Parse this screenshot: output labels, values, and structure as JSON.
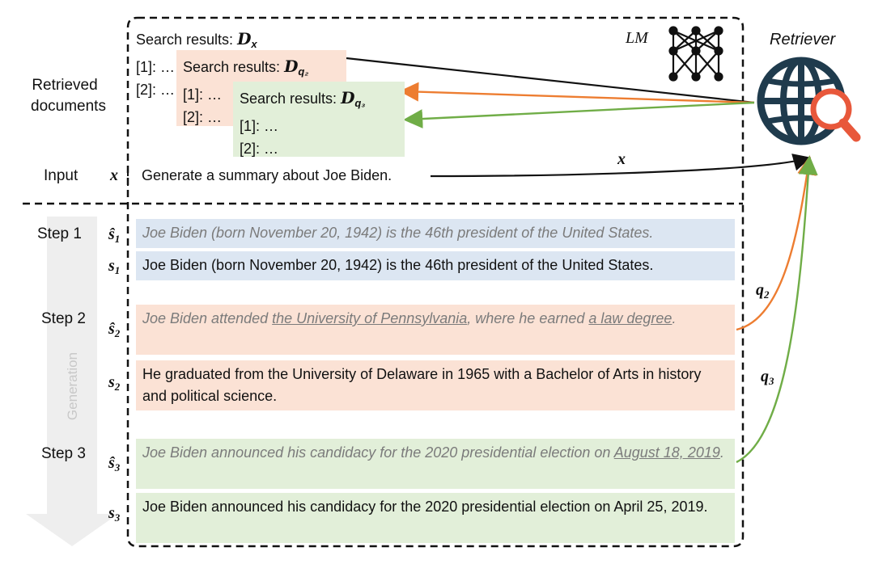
{
  "header": {
    "lm_label": "LM",
    "retriever_label": "Retriever"
  },
  "left_labels": {
    "retrieved_documents_line1": "Retrieved",
    "retrieved_documents_line2": "documents",
    "input": "Input",
    "step1": "Step 1",
    "step2": "Step 2",
    "step3": "Step 3",
    "generation": "Generation"
  },
  "search_results": {
    "dx": {
      "title": "Search results:",
      "symbol": "D",
      "sub": "x",
      "items": [
        "[1]: …",
        "[2]: …"
      ]
    },
    "dq2": {
      "title": "Search results:",
      "symbol": "D",
      "sub": "q₂",
      "items": [
        "[1]: …",
        "[2]: …"
      ]
    },
    "dq3": {
      "title": "Search results:",
      "symbol": "D",
      "sub": "q₃",
      "items": [
        "[1]: …",
        "[2]: …"
      ]
    }
  },
  "input": {
    "symbol": "x",
    "text": "Generate a summary about Joe Biden."
  },
  "edges": {
    "x_label": "x",
    "q2_label": "q",
    "q2_sub": "2",
    "q3_label": "q",
    "q3_sub": "3"
  },
  "steps": {
    "s1_hat": {
      "symbol": "ŝ",
      "sub": "1",
      "text": "Joe Biden (born November 20, 1942) is the 46th president of the United States."
    },
    "s1": {
      "symbol": "s",
      "sub": "1",
      "text": "Joe Biden (born November 20, 1942) is the 46th president of the United States."
    },
    "s2_hat": {
      "symbol": "ŝ",
      "sub": "2",
      "part1": "Joe Biden attended ",
      "u1": "the University of Pennsylvania",
      "part2": ", where he earned ",
      "u2": "a law degree",
      "part3": "."
    },
    "s2": {
      "symbol": "s",
      "sub": "2",
      "text": "He graduated from the University of Delaware in 1965 with a Bachelor of Arts in history and political science."
    },
    "s3_hat": {
      "symbol": "ŝ",
      "sub": "3",
      "part1": "Joe Biden announced his candidacy for the 2020 presidential election on ",
      "u1": "August 18, 2019",
      "part2": "."
    },
    "s3": {
      "symbol": "s",
      "sub": "3",
      "text": "Joe Biden announced his candidacy for the 2020 presidential election on April 25, 2019."
    }
  },
  "colors": {
    "blue": "#dce6f2",
    "orange": "#fbe2d5",
    "green": "#e2efd9",
    "orange_arrow": "#ed7d31",
    "green_arrow": "#70ad47",
    "globe": "#1f3b4d",
    "magnifier": "#e8583b"
  }
}
